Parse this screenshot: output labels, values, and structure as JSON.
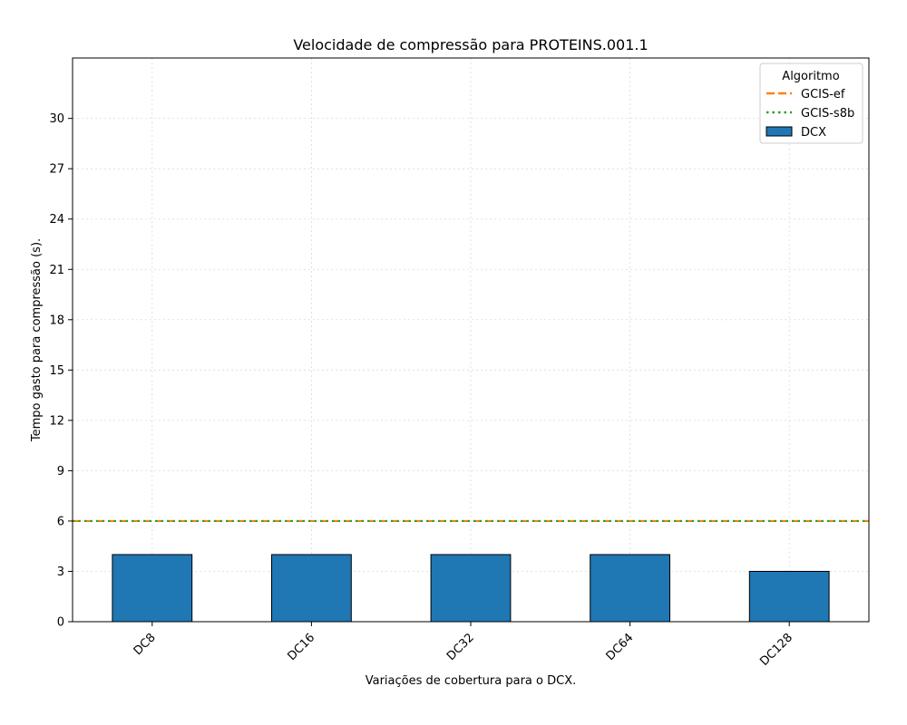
{
  "chart_data": {
    "type": "bar",
    "title": "Velocidade de compressão para  PROTEINS.001.1",
    "xlabel": "Variações de cobertura para o DCX.",
    "ylabel": "Tempo gasto para compressão (s).",
    "categories": [
      "DC8",
      "DC16",
      "DC32",
      "DC64",
      "DC128"
    ],
    "series": [
      {
        "name": "DCX",
        "values": [
          4,
          4,
          4,
          4,
          3
        ],
        "color": "#1f77b4"
      }
    ],
    "reference_lines": [
      {
        "name": "GCIS-ef",
        "value": 6,
        "color": "#ff7f0e",
        "style": "dashed"
      },
      {
        "name": "GCIS-s8b",
        "value": 6,
        "color": "#2ca02c",
        "style": "dotted"
      }
    ],
    "ylim": [
      0,
      33.6
    ],
    "yticks": [
      0,
      3,
      6,
      9,
      12,
      15,
      18,
      21,
      24,
      27,
      30
    ],
    "grid": true,
    "legend": {
      "title": "Algoritmo",
      "position": "top-right"
    }
  }
}
